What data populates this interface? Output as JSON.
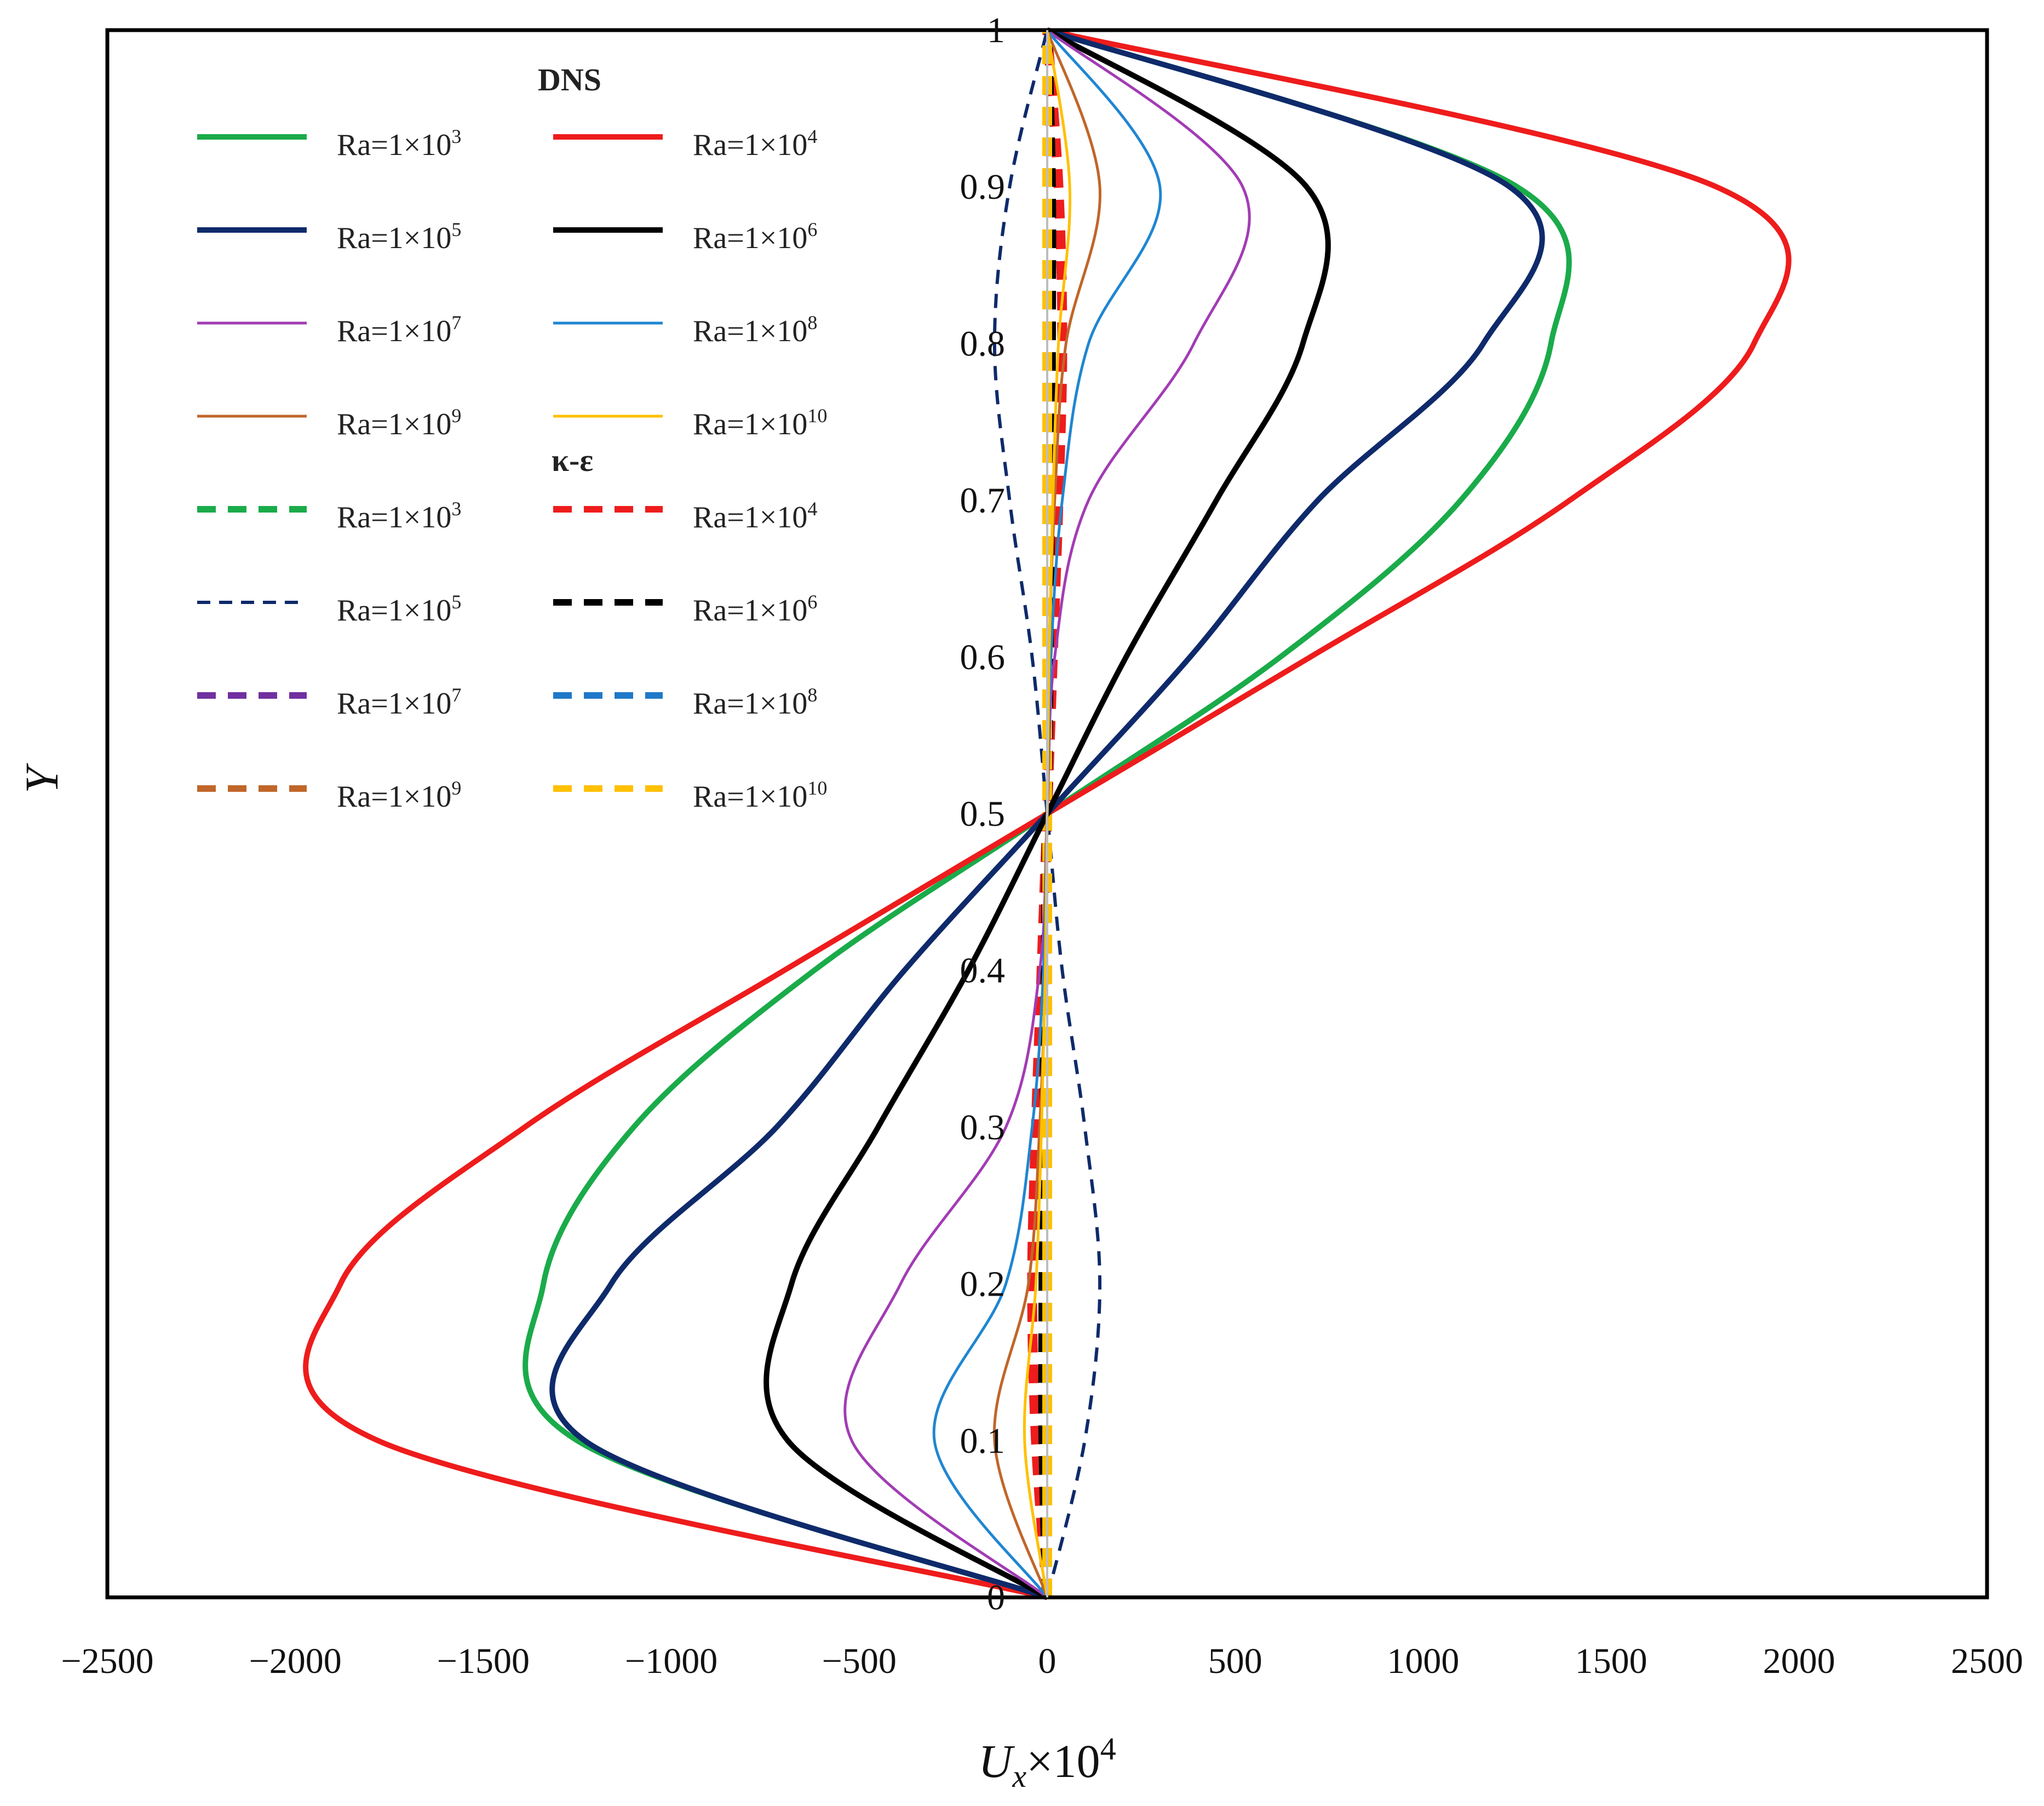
{
  "chart_data": {
    "type": "line",
    "title": "",
    "xlabel": "Ux×10⁴",
    "xlabel_main": "U",
    "xlabel_sub": "x",
    "xlabel_rest": "×10",
    "xlabel_sup": "4",
    "ylabel": "Y",
    "xlim": [
      -2500,
      2500
    ],
    "ylim": [
      0,
      1
    ],
    "xticks": [
      -2500,
      -2000,
      -1500,
      -1000,
      -500,
      0,
      500,
      1000,
      1500,
      2000,
      2500
    ],
    "xtick_labels": [
      "−2500",
      "−2000",
      "−1500",
      "−1000",
      "−500",
      "0",
      "500",
      "1000",
      "1500",
      "2000",
      "2500"
    ],
    "yticks": [
      0,
      0.1,
      0.2,
      0.3,
      0.4,
      0.5,
      0.6,
      0.7,
      0.8,
      0.9,
      1
    ],
    "ytick_labels": [
      "0",
      "0.1",
      "0.2",
      "0.3",
      "0.4",
      "0.5",
      "0.6",
      "0.7",
      "0.8",
      "0.9",
      "1"
    ],
    "grid": false,
    "legend_placement": "top-left",
    "legend_headers": [
      "DNS",
      "κ-ε"
    ],
    "y_samples": [
      0,
      0.1,
      0.2,
      0.3,
      0.4,
      0.5,
      0.6,
      0.7,
      0.8,
      0.9,
      1
    ],
    "series": [
      {
        "name": "Ra=1×10³",
        "group": "DNS",
        "color": "#1aab4a",
        "style": "solid",
        "width": "thick",
        "label_base": "Ra=1×10",
        "label_exp": "3",
        "x": [
          0,
          -1250,
          -1340,
          -1100,
          -620,
          0,
          620,
          1100,
          1340,
          1250,
          0
        ]
      },
      {
        "name": "Ra=1×10⁴",
        "group": "DNS",
        "color": "#ee1c1c",
        "style": "solid",
        "width": "thick",
        "label_base": "Ra=1×10",
        "label_exp": "4",
        "x": [
          0,
          -1780,
          -1880,
          -1390,
          -700,
          0,
          700,
          1390,
          1880,
          1780,
          0
        ]
      },
      {
        "name": "Ra=1×10⁵",
        "group": "DNS",
        "color": "#0f2a6b",
        "style": "solid",
        "width": "thick",
        "label_base": "Ra=1×10",
        "label_exp": "5",
        "x": [
          0,
          -1230,
          -1160,
          -720,
          -380,
          0,
          380,
          720,
          1160,
          1230,
          0
        ]
      },
      {
        "name": "Ra=1×10⁶",
        "group": "DNS",
        "color": "#000000",
        "style": "solid",
        "width": "thick",
        "label_base": "Ra=1×10",
        "label_exp": "6",
        "x": [
          0,
          -690,
          -680,
          -450,
          -210,
          0,
          210,
          450,
          680,
          690,
          0
        ]
      },
      {
        "name": "Ra=1×10⁷",
        "group": "DNS",
        "color": "#a23cb4",
        "style": "solid",
        "width": "thin",
        "label_base": "Ra=1×10",
        "label_exp": "7",
        "x": [
          0,
          -520,
          -390,
          -110,
          -20,
          0,
          20,
          110,
          390,
          520,
          0
        ]
      },
      {
        "name": "Ra=1×10⁸",
        "group": "DNS",
        "color": "#1f86d1",
        "style": "solid",
        "width": "thin",
        "label_base": "Ra=1×10",
        "label_exp": "8",
        "x": [
          0,
          -300,
          -110,
          -40,
          -10,
          0,
          10,
          40,
          110,
          300,
          0
        ]
      },
      {
        "name": "Ra=1×10⁹",
        "group": "DNS",
        "color": "#c0662a",
        "style": "solid",
        "width": "thin",
        "label_base": "Ra=1×10",
        "label_exp": "9",
        "x": [
          0,
          -140,
          -50,
          -20,
          -5,
          0,
          5,
          20,
          50,
          140,
          0
        ]
      },
      {
        "name": "Ra=1×10¹⁰",
        "group": "DNS",
        "color": "#ffc000",
        "style": "solid",
        "width": "thin",
        "label_base": "Ra=1×10",
        "label_exp": "10",
        "x": [
          0,
          -60,
          -30,
          -15,
          -5,
          0,
          5,
          15,
          30,
          60,
          0
        ]
      },
      {
        "name": "Ra=1×10³",
        "group": "κ-ε",
        "color": "#1aab4a",
        "style": "dashed",
        "width": "thick",
        "label_base": "Ra=1×10",
        "label_exp": "3",
        "x": [
          0,
          0,
          0,
          0,
          0,
          0,
          0,
          0,
          0,
          0,
          0
        ]
      },
      {
        "name": "Ra=1×10⁴",
        "group": "κ-ε",
        "color": "#ee1c1c",
        "style": "dashed",
        "width": "thick",
        "label_base": "Ra=1×10",
        "label_exp": "4",
        "x": [
          0,
          -30,
          -40,
          -30,
          -15,
          0,
          15,
          30,
          40,
          30,
          0
        ]
      },
      {
        "name": "Ra=1×10⁵",
        "group": "κ-ε",
        "color": "#0f2a6b",
        "style": "dashed",
        "width": "thin",
        "label_base": "Ra=1×10",
        "label_exp": "5",
        "x": [
          0,
          100,
          140,
          100,
          40,
          0,
          -40,
          -100,
          -140,
          -100,
          0
        ]
      },
      {
        "name": "Ra=1×10⁶",
        "group": "κ-ε",
        "color": "#000000",
        "style": "dashed",
        "width": "thick",
        "label_base": "Ra=1×10",
        "label_exp": "6",
        "x": [
          0,
          -10,
          -10,
          -8,
          -4,
          0,
          4,
          8,
          10,
          10,
          0
        ]
      },
      {
        "name": "Ra=1×10⁷",
        "group": "κ-ε",
        "color": "#7030a0",
        "style": "dashed",
        "width": "thick",
        "label_base": "Ra=1×10",
        "label_exp": "7",
        "x": [
          0,
          0,
          0,
          0,
          0,
          0,
          0,
          0,
          0,
          0,
          0
        ]
      },
      {
        "name": "Ra=1×10⁸",
        "group": "κ-ε",
        "color": "#1f78c8",
        "style": "dashed",
        "width": "thick",
        "label_base": "Ra=1×10",
        "label_exp": "8",
        "x": [
          0,
          0,
          0,
          0,
          0,
          0,
          0,
          0,
          0,
          0,
          0
        ]
      },
      {
        "name": "Ra=1×10⁹",
        "group": "κ-ε",
        "color": "#c0662a",
        "style": "dashed",
        "width": "thick",
        "label_base": "Ra=1×10",
        "label_exp": "9",
        "x": [
          0,
          0,
          0,
          0,
          0,
          0,
          0,
          0,
          0,
          0,
          0
        ]
      },
      {
        "name": "Ra=1×10¹⁰",
        "group": "κ-ε",
        "color": "#ffc000",
        "style": "dashed",
        "width": "thick",
        "label_base": "Ra=1×10",
        "label_exp": "10",
        "x": [
          0,
          0,
          0,
          0,
          0,
          0,
          0,
          0,
          0,
          0,
          0
        ]
      }
    ]
  }
}
